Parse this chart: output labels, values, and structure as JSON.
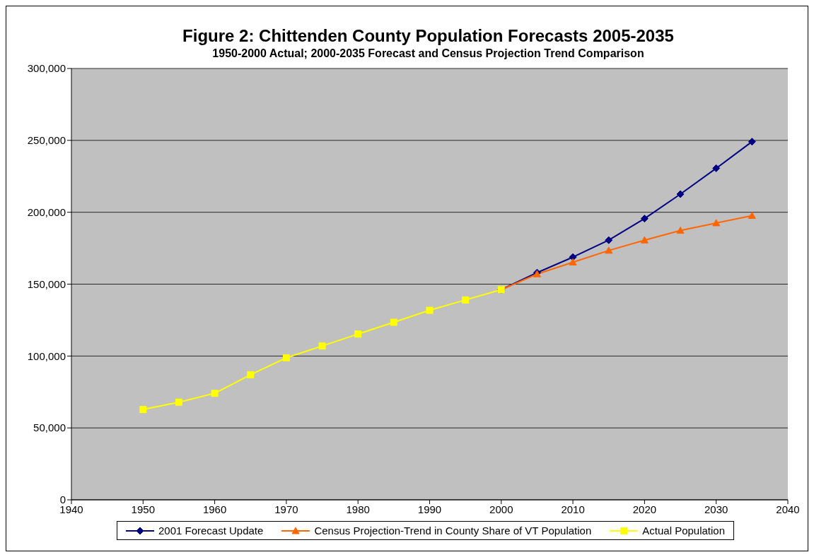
{
  "chart_data": {
    "type": "line",
    "title": "Figure 2: Chittenden County Population Forecasts 2005-2035",
    "subtitle": "1950-2000 Actual; 2000-2035 Forecast and Census Projection Trend Comparison",
    "x": [
      1950,
      1955,
      1960,
      1965,
      1970,
      1975,
      1980,
      1985,
      1990,
      1995,
      2000,
      2005,
      2010,
      2015,
      2020,
      2025,
      2030,
      2035
    ],
    "series": [
      {
        "name": "2001 Forecast Update",
        "color": "#000080",
        "marker": "diamond",
        "values": [
          null,
          null,
          null,
          null,
          null,
          null,
          null,
          null,
          null,
          null,
          146200,
          158000,
          168800,
          180600,
          195600,
          212600,
          230600,
          249100
        ]
      },
      {
        "name": "Census Projection-Trend in County Share of VT Population",
        "color": "#ff6600",
        "marker": "triangle",
        "values": [
          null,
          null,
          null,
          null,
          null,
          null,
          null,
          null,
          null,
          null,
          146200,
          157000,
          165200,
          173400,
          180600,
          187300,
          192500,
          197600
        ]
      },
      {
        "name": "Actual Population",
        "color": "#ffff00",
        "marker": "square",
        "values": [
          62800,
          67900,
          74100,
          87000,
          98800,
          107000,
          115300,
          123500,
          131800,
          139000,
          146200,
          null,
          null,
          null,
          null,
          null,
          null,
          null
        ]
      }
    ],
    "xlim": [
      1940,
      2040
    ],
    "xticks": [
      1940,
      1950,
      1960,
      1970,
      1980,
      1990,
      2000,
      2010,
      2020,
      2030,
      2040
    ],
    "ylim": [
      0,
      300000
    ],
    "yticks": [
      0,
      {
        "value": 50000,
        "label": "50,000"
      },
      {
        "value": 100000,
        "label": "100,000"
      },
      {
        "value": 150000,
        "label": "150,000"
      },
      {
        "value": 200000,
        "label": "200,000"
      },
      {
        "value": 250000,
        "label": "250,000"
      },
      {
        "value": 300000,
        "label": "300,000"
      }
    ],
    "grid": "y",
    "legend": "bottom"
  }
}
